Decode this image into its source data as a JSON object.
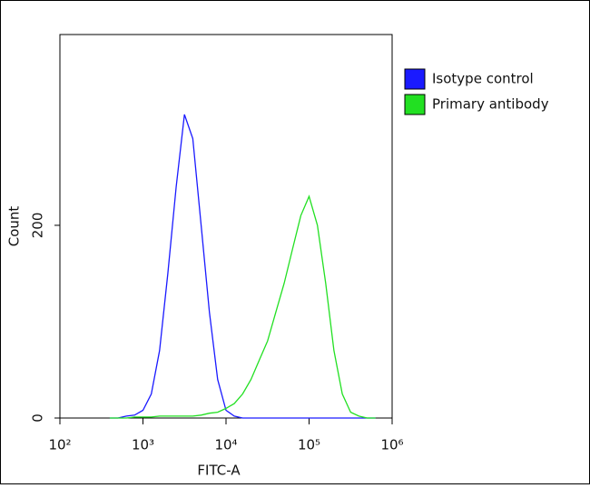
{
  "chart_data": {
    "type": "line",
    "x_label": "FITC-A",
    "y_label": "Count",
    "x_log": true,
    "x": [
      398,
      501,
      631,
      794,
      1000,
      1259,
      1585,
      1995,
      2512,
      3162,
      3981,
      5012,
      6310,
      7943,
      10000,
      12589,
      15849,
      19953,
      25119,
      31623,
      39811,
      50119,
      63096,
      79433,
      100000,
      125893,
      158489,
      199526,
      251189,
      316228,
      398107,
      501187,
      630957
    ],
    "series": [
      {
        "name": "Isotype control",
        "color": "#1a1aff",
        "values": [
          0,
          0,
          2,
          3,
          8,
          25,
          70,
          150,
          240,
          315,
          290,
          200,
          110,
          40,
          8,
          2,
          0,
          0,
          0,
          0,
          0,
          0,
          0,
          0,
          0,
          0,
          0,
          0,
          0,
          0,
          0,
          0,
          0
        ]
      },
      {
        "name": "Primary antibody",
        "color": "#22e022",
        "values": [
          0,
          0,
          0,
          1,
          1,
          1,
          2,
          2,
          2,
          2,
          2,
          3,
          5,
          6,
          10,
          15,
          25,
          40,
          60,
          80,
          110,
          140,
          175,
          210,
          230,
          200,
          140,
          70,
          25,
          6,
          2,
          0,
          0
        ]
      }
    ],
    "xlim": [
      100,
      1000000
    ],
    "xticks": [
      {
        "value": 100,
        "label": "10²"
      },
      {
        "value": 1000,
        "label": "10³"
      },
      {
        "value": 10000,
        "label": "10⁴"
      },
      {
        "value": 100000,
        "label": "10⁵"
      },
      {
        "value": 1000000,
        "label": "10⁶"
      }
    ],
    "ylim": [
      0,
      398
    ],
    "yticks": [
      0,
      200
    ],
    "legend": "top-right"
  }
}
